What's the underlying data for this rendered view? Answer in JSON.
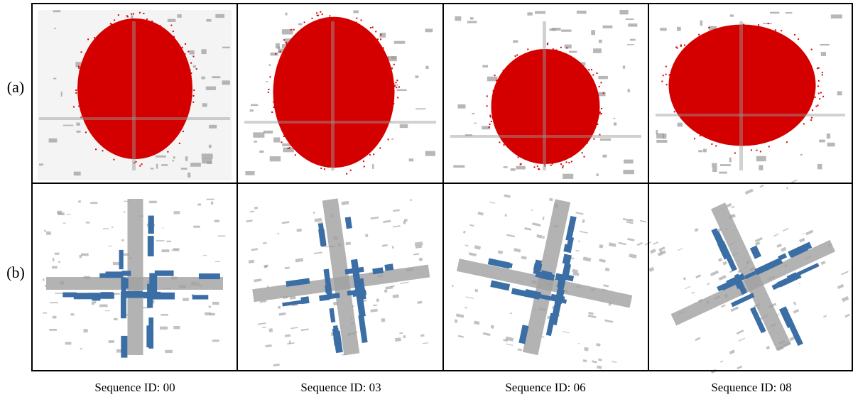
{
  "row_labels": [
    "(a)",
    "(b)"
  ],
  "captions": [
    "Sequence ID: 00",
    "Sequence ID: 03",
    "Sequence ID: 06",
    "Sequence ID: 08"
  ]
}
